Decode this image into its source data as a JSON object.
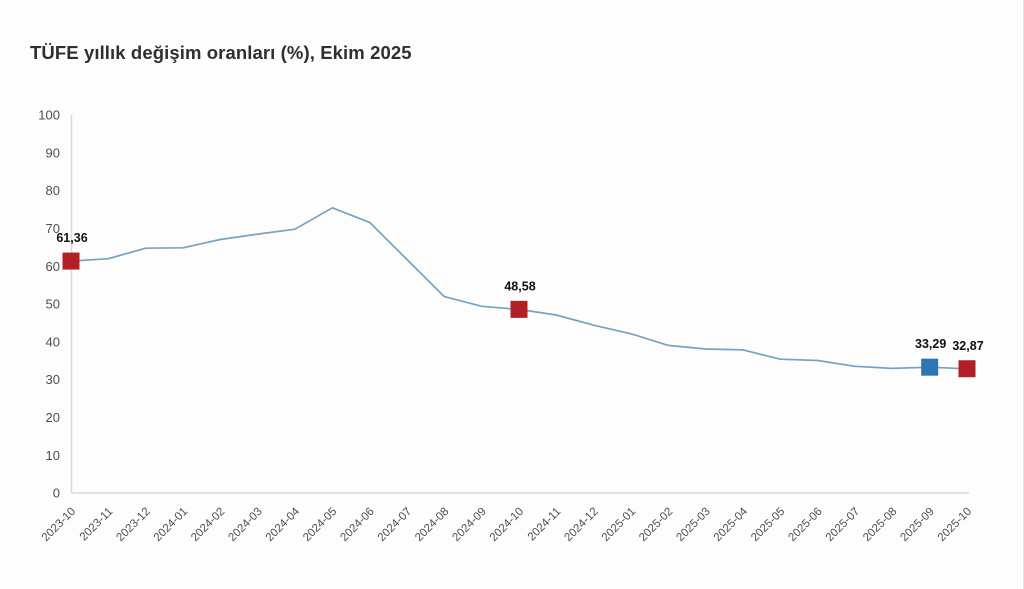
{
  "title": "TÜFE yıllık değişim oranları (%), Ekim 2025",
  "colors": {
    "line": "#74a3c4",
    "marker_red": "#b02025",
    "marker_blue": "#2e75b6",
    "axis": "#d9d9d9",
    "tick_text": "#4f4f4f",
    "point_label_text": "#111111",
    "title_text": "#2f2f2f",
    "background": "#fdfdfd"
  },
  "chart_data": {
    "type": "line",
    "title": "TÜFE yıllık değişim oranları (%), Ekim 2025",
    "xlabel": "",
    "ylabel": "",
    "ylim": [
      0,
      100
    ],
    "yticks": [
      0,
      10,
      20,
      30,
      40,
      50,
      60,
      70,
      80,
      90,
      100
    ],
    "grid": false,
    "legend": false,
    "x": [
      "2023-10",
      "2023-11",
      "2023-12",
      "2024-01",
      "2024-02",
      "2024-03",
      "2024-04",
      "2024-05",
      "2024-06",
      "2024-07",
      "2024-08",
      "2024-09",
      "2024-10",
      "2024-11",
      "2024-12",
      "2025-01",
      "2025-02",
      "2025-03",
      "2025-04",
      "2025-05",
      "2025-06",
      "2025-07",
      "2025-08",
      "2025-09",
      "2025-10"
    ],
    "values": [
      61.36,
      61.98,
      64.77,
      64.86,
      67.07,
      68.5,
      69.8,
      75.45,
      71.6,
      61.78,
      51.97,
      49.38,
      48.58,
      47.09,
      44.38,
      42.12,
      39.05,
      38.1,
      37.86,
      35.41,
      35.05,
      33.52,
      32.95,
      33.29,
      32.87
    ],
    "highlighted_points": [
      {
        "index": 0,
        "x": "2023-10",
        "value": 61.36,
        "label": "61,36",
        "color_key": "marker_red"
      },
      {
        "index": 12,
        "x": "2024-10",
        "value": 48.58,
        "label": "48,58",
        "color_key": "marker_red"
      },
      {
        "index": 23,
        "x": "2025-09",
        "value": 33.29,
        "label": "33,29",
        "color_key": "marker_blue"
      },
      {
        "index": 24,
        "x": "2025-10",
        "value": 32.87,
        "label": "32,87",
        "color_key": "marker_red"
      }
    ]
  }
}
